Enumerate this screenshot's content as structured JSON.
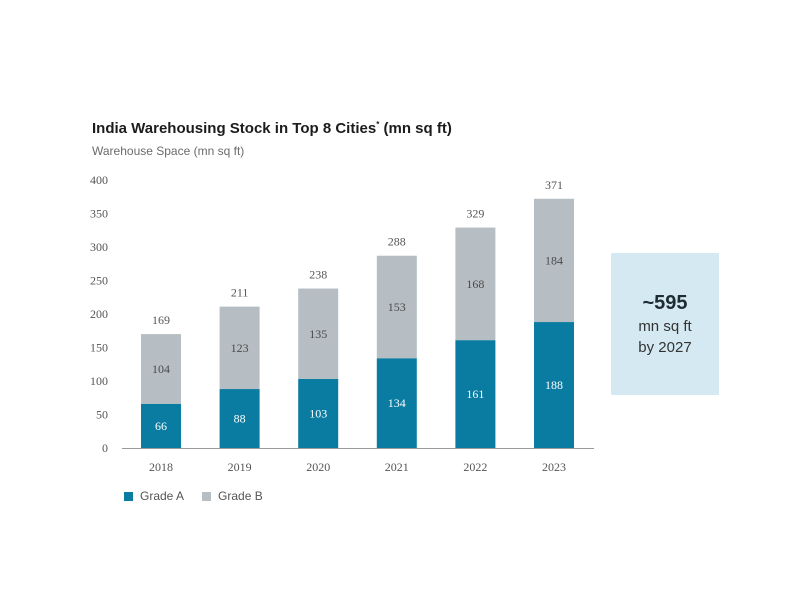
{
  "chart_data": {
    "type": "bar",
    "stacked": true,
    "title": "India Warehousing Stock in Top 8 Cities",
    "title_superscript": "*",
    "title_suffix": " (mn sq ft)",
    "ylabel": "Warehouse Space (mn sq ft)",
    "xlabel": "",
    "ylim": [
      0,
      400
    ],
    "yticks": [
      0,
      50,
      100,
      150,
      200,
      250,
      300,
      350,
      400
    ],
    "grid": false,
    "categories": [
      "2018",
      "2019",
      "2020",
      "2021",
      "2022",
      "2023"
    ],
    "series": [
      {
        "name": "Grade A",
        "color": "#0a7ca1",
        "label_color": "#ffffff",
        "values": [
          66,
          88,
          103,
          134,
          161,
          188
        ]
      },
      {
        "name": "Grade B",
        "color": "#b6bec3",
        "label_color": "#4a4a4a",
        "values": [
          104,
          123,
          135,
          153,
          168,
          184
        ]
      }
    ],
    "totals": [
      169,
      211,
      238,
      288,
      329,
      371
    ],
    "legend_position": "bottom-left"
  },
  "callout": {
    "value": "~595",
    "line1": "mn sq ft",
    "line2": "by 2027",
    "background": "#d4e9f2"
  }
}
